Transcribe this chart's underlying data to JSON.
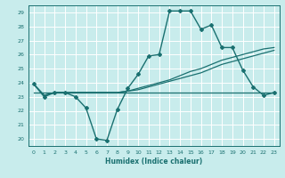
{
  "xlabel": "Humidex (Indice chaleur)",
  "bg_color": "#c8ecec",
  "grid_color": "#ffffff",
  "line_color": "#1a7070",
  "xlim": [
    -0.5,
    23.5
  ],
  "ylim": [
    19.5,
    29.5
  ],
  "xticks": [
    0,
    1,
    2,
    3,
    4,
    5,
    6,
    7,
    8,
    9,
    10,
    11,
    12,
    13,
    14,
    15,
    16,
    17,
    18,
    19,
    20,
    21,
    22,
    23
  ],
  "yticks": [
    20,
    21,
    22,
    23,
    24,
    25,
    26,
    27,
    28,
    29
  ],
  "series": [
    {
      "x": [
        0,
        1,
        2,
        3,
        4,
        5,
        6,
        7,
        8,
        9,
        10,
        11,
        12,
        13,
        14,
        15,
        16,
        17,
        18,
        19,
        20,
        21,
        22,
        23
      ],
      "y": [
        23.9,
        23.0,
        23.3,
        23.3,
        23.0,
        22.2,
        20.0,
        19.9,
        22.1,
        23.6,
        24.6,
        25.9,
        26.0,
        29.1,
        29.1,
        29.1,
        27.8,
        28.1,
        26.5,
        26.5,
        24.9,
        23.7,
        23.1,
        23.3
      ],
      "marker": "D",
      "markersize": 2.0,
      "linewidth": 1.0
    },
    {
      "x": [
        0,
        1,
        2,
        3,
        4,
        5,
        6,
        7,
        8,
        9,
        10,
        11,
        12,
        13,
        14,
        15,
        16,
        17,
        18,
        19,
        20,
        21,
        22,
        23
      ],
      "y": [
        23.9,
        23.1,
        23.3,
        23.3,
        23.3,
        23.3,
        23.3,
        23.3,
        23.3,
        23.4,
        23.5,
        23.7,
        23.9,
        24.1,
        24.3,
        24.5,
        24.7,
        25.0,
        25.3,
        25.5,
        25.7,
        25.9,
        26.1,
        26.3
      ],
      "marker": null,
      "markersize": 0,
      "linewidth": 0.9
    },
    {
      "x": [
        0,
        1,
        2,
        3,
        4,
        5,
        6,
        7,
        8,
        9,
        10,
        11,
        12,
        13,
        14,
        15,
        16,
        17,
        18,
        19,
        20,
        21,
        22,
        23
      ],
      "y": [
        23.9,
        23.1,
        23.3,
        23.3,
        23.3,
        23.3,
        23.3,
        23.3,
        23.3,
        23.4,
        23.6,
        23.8,
        24.0,
        24.2,
        24.5,
        24.8,
        25.0,
        25.3,
        25.6,
        25.8,
        26.0,
        26.2,
        26.4,
        26.5
      ],
      "marker": null,
      "markersize": 0,
      "linewidth": 0.9
    },
    {
      "x": [
        0,
        21,
        23
      ],
      "y": [
        23.3,
        23.3,
        23.3
      ],
      "marker": null,
      "markersize": 0,
      "linewidth": 0.9
    }
  ]
}
